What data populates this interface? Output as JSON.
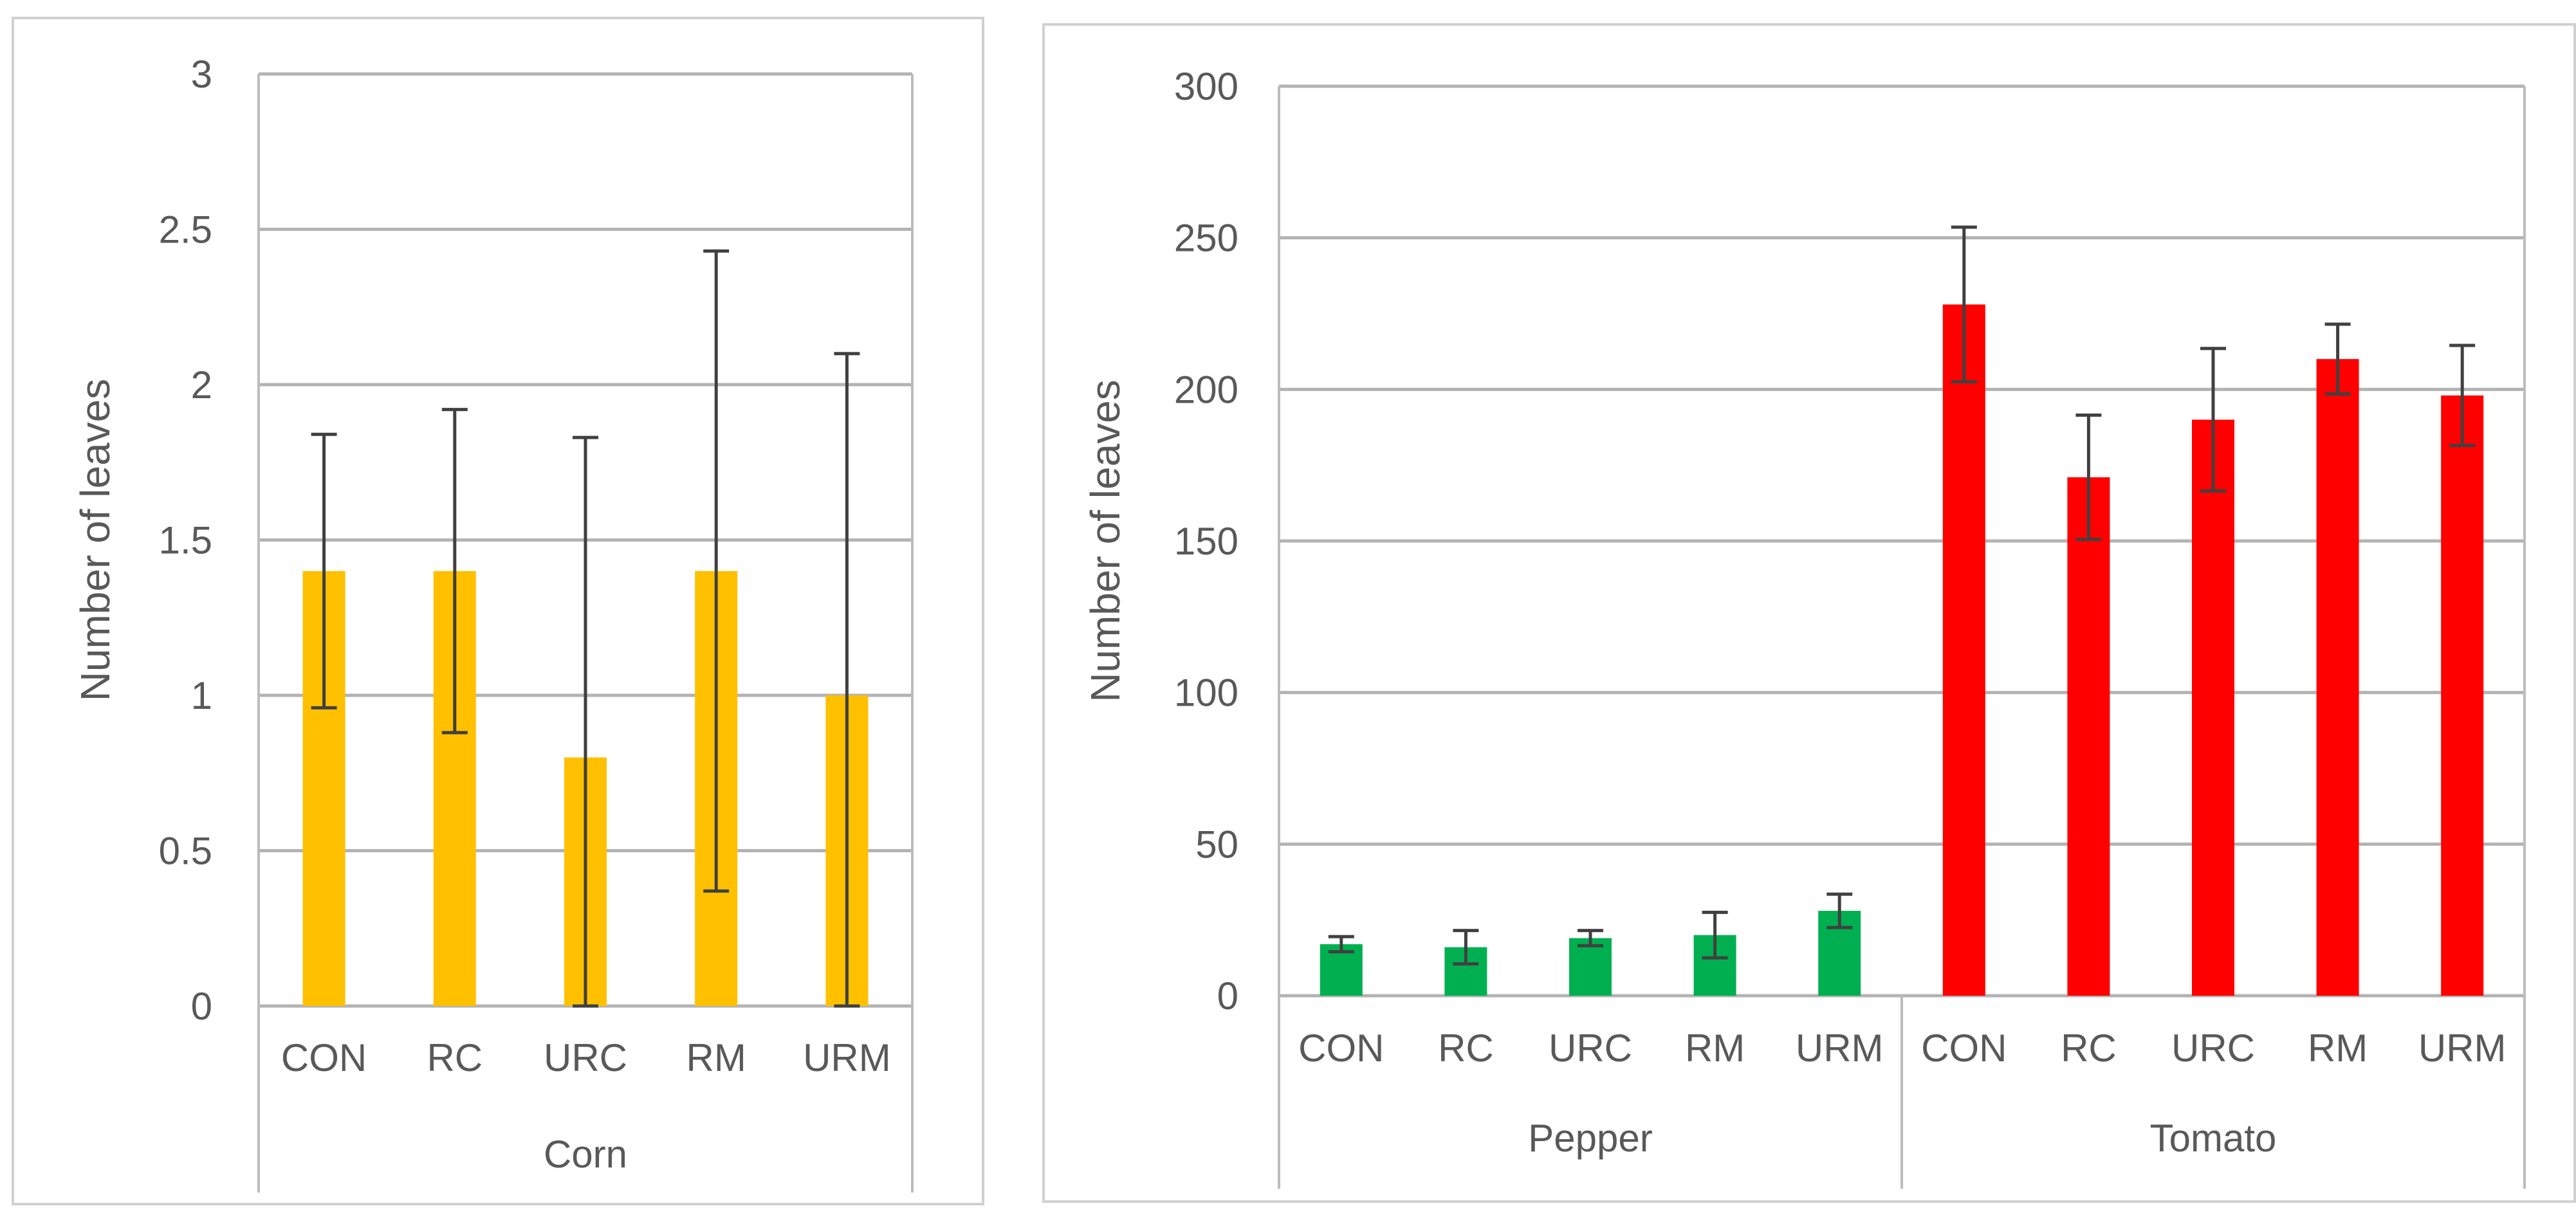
{
  "chart_data": [
    {
      "type": "bar",
      "ylabel": "Number of leaves",
      "ylim": [
        0,
        3
      ],
      "yticks": [
        "0",
        "0.5",
        "1",
        "1.5",
        "2",
        "2.5",
        "3"
      ],
      "grid": true,
      "groups": [
        {
          "name": "Corn",
          "color": "#FFC000",
          "categories": [
            "CON",
            "RC",
            "URC",
            "RM",
            "URM"
          ],
          "values": [
            1.4,
            1.4,
            0.8,
            1.4,
            1.0
          ],
          "error": [
            0.44,
            0.52,
            1.03,
            1.03,
            1.1
          ]
        }
      ]
    },
    {
      "type": "bar",
      "ylabel": "Number of leaves",
      "ylim": [
        0,
        300
      ],
      "yticks": [
        "0",
        "50",
        "100",
        "150",
        "200",
        "250",
        "300"
      ],
      "grid": true,
      "groups": [
        {
          "name": "Pepper",
          "color": "#00B050",
          "categories": [
            "CON",
            "RC",
            "URC",
            "RM",
            "URM"
          ],
          "values": [
            17,
            16,
            19,
            20,
            28
          ],
          "error": [
            2.5,
            5.5,
            2.5,
            7.5,
            5.5
          ]
        },
        {
          "name": "Tomato",
          "color": "#FF0000",
          "categories": [
            "CON",
            "RC",
            "URC",
            "RM",
            "URM"
          ],
          "values": [
            228,
            171,
            190,
            210,
            198
          ],
          "error": [
            25.5,
            20.5,
            23.5,
            11.5,
            16.5
          ]
        }
      ]
    }
  ]
}
